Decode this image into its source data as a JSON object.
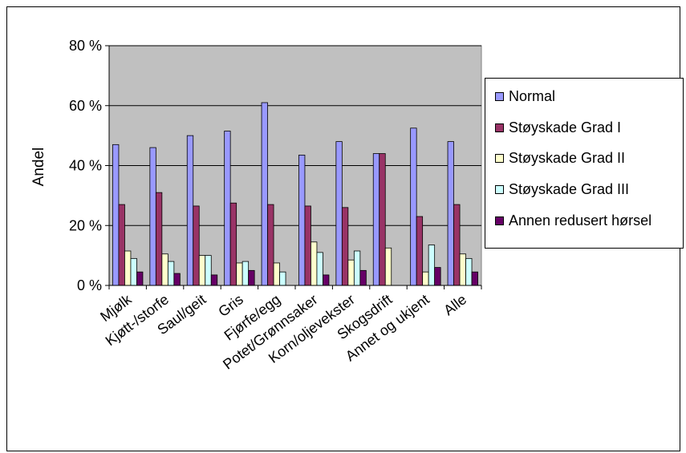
{
  "chart_data": {
    "type": "bar",
    "ylabel": "Andel",
    "ylim": [
      0,
      80
    ],
    "yticks": [
      0,
      20,
      40,
      60,
      80
    ],
    "ytick_labels": [
      "0 %",
      "20 %",
      "40 %",
      "60 %",
      "80 %"
    ],
    "grid": true,
    "legend_position": "right",
    "plot_background": "#c0c0c0",
    "categories": [
      "Mjølk",
      "Kjøtt-/storfe",
      "Saul/geit",
      "Gris",
      "Fjørfe/egg",
      "Potet/Grønnsaker",
      "Korn/oljevekster",
      "Skogsdrift",
      "Annet og ukjent",
      "Alle"
    ],
    "series": [
      {
        "name": "Normal",
        "color": "#9999ff",
        "values": [
          47,
          46,
          50,
          51.5,
          61,
          43.5,
          48,
          44,
          52.5,
          48
        ]
      },
      {
        "name": "Støyskade Grad I",
        "color": "#993366",
        "values": [
          27,
          31,
          26.5,
          27.5,
          27,
          26.5,
          26,
          44,
          23,
          27
        ]
      },
      {
        "name": "Støyskade Grad II",
        "color": "#ffffcc",
        "values": [
          11.5,
          10.5,
          10,
          7.5,
          7.5,
          14.5,
          8.5,
          12.5,
          4.5,
          10.5
        ]
      },
      {
        "name": "Støyskade Grad III",
        "color": "#ccffff",
        "values": [
          9,
          8,
          10,
          8,
          4.5,
          11,
          11.5,
          0,
          13.5,
          9
        ]
      },
      {
        "name": "Annen redusert hørsel",
        "color": "#660066",
        "values": [
          4.5,
          4,
          3.5,
          5,
          0,
          3.5,
          5,
          0,
          6,
          4.5
        ]
      }
    ]
  }
}
